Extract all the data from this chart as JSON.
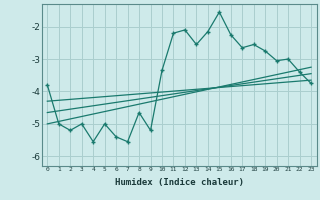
{
  "xlabel": "Humidex (Indice chaleur)",
  "ylabel": "",
  "bg_color": "#ceeaea",
  "grid_color": "#aacece",
  "line_color": "#1a7a6e",
  "xlim": [
    -0.5,
    23.5
  ],
  "ylim": [
    -6.3,
    -1.3
  ],
  "yticks": [
    -6,
    -5,
    -4,
    -3,
    -2
  ],
  "xticks": [
    0,
    1,
    2,
    3,
    4,
    5,
    6,
    7,
    8,
    9,
    10,
    11,
    12,
    13,
    14,
    15,
    16,
    17,
    18,
    19,
    20,
    21,
    22,
    23
  ],
  "x": [
    0,
    1,
    2,
    3,
    4,
    5,
    6,
    7,
    8,
    9,
    10,
    11,
    12,
    13,
    14,
    15,
    16,
    17,
    18,
    19,
    20,
    21,
    22,
    23
  ],
  "y_main": [
    -3.8,
    -5.0,
    -5.2,
    -5.0,
    -5.55,
    -5.0,
    -5.4,
    -5.55,
    -4.65,
    -5.2,
    -3.35,
    -2.2,
    -2.1,
    -2.55,
    -2.15,
    -1.55,
    -2.25,
    -2.65,
    -2.55,
    -2.75,
    -3.05,
    -3.0,
    -3.4,
    -3.75
  ],
  "trend1_x": [
    0,
    23
  ],
  "trend1_y": [
    -4.3,
    -3.65
  ],
  "trend2_x": [
    0,
    23
  ],
  "trend2_y": [
    -4.65,
    -3.45
  ],
  "trend3_x": [
    0,
    23
  ],
  "trend3_y": [
    -5.0,
    -3.25
  ]
}
